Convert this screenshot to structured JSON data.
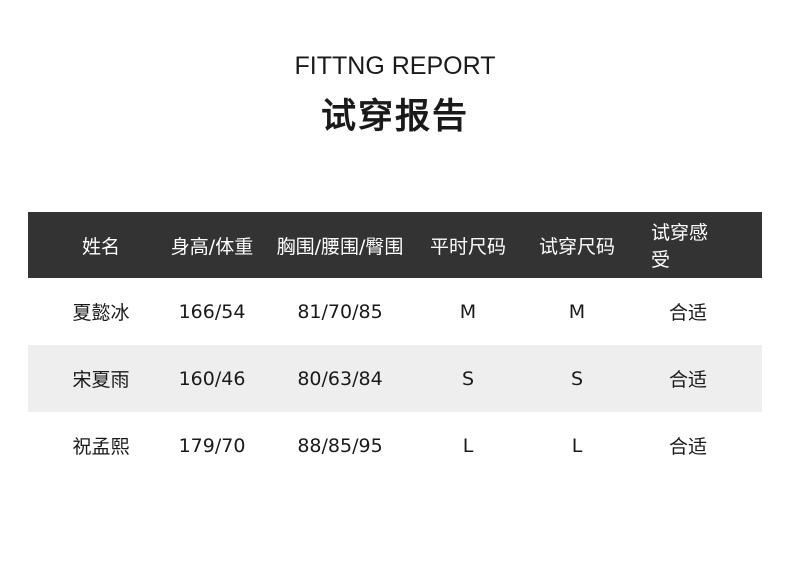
{
  "title_en": "FITTNG REPORT",
  "title_cn": "试穿报告",
  "colors": {
    "header_bg": "#333333",
    "alt_row_bg": "#eeeeee"
  },
  "table": {
    "headers": [
      "姓名",
      "身高/体重",
      "胸围/腰围/臀围",
      "平时尺码",
      "试穿尺码",
      "试穿感受"
    ],
    "rows": [
      [
        "夏懿冰",
        "166/54",
        "81/70/85",
        "M",
        "M",
        "合适"
      ],
      [
        "宋夏雨",
        "160/46",
        "80/63/84",
        "S",
        "S",
        "合适"
      ],
      [
        "祝孟熙",
        "179/70",
        "88/85/95",
        "L",
        "L",
        "合适"
      ]
    ]
  }
}
